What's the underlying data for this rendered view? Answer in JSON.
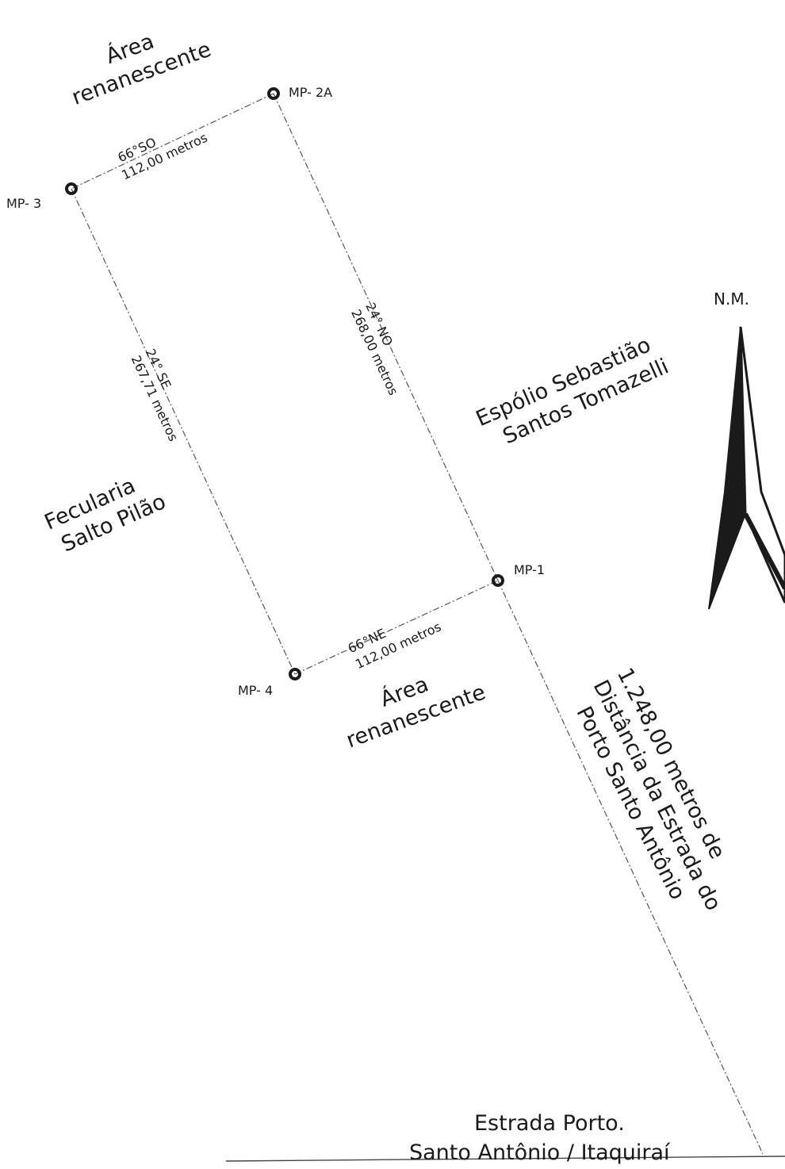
{
  "markers": {
    "mp_2a": "MP- 2A",
    "mp_3": "MP- 3",
    "mp_1": "MP-1",
    "mp_4": "MP- 4"
  },
  "segments": {
    "top": {
      "bearing": "66°SO",
      "length": "112,00 metros"
    },
    "left": {
      "bearing": "24° SE",
      "length": "267,71 metros"
    },
    "right": {
      "bearing": "24° NO",
      "length": "268,00 metros"
    },
    "bottom": {
      "bearing": "66°NE",
      "length": "112,00 metros"
    }
  },
  "areas": {
    "top_remaining": [
      "Área",
      "renanescente"
    ],
    "bottom_remaining": [
      "Área",
      "renanescente"
    ],
    "fecularia": [
      "Fecularia",
      "Salto Pilão"
    ],
    "espolio": [
      "Espólio Sebastião",
      "Santos Tomazelli"
    ]
  },
  "distance_note": [
    "1.248,00 metros de",
    "Distância da Estrada do",
    "Porto Santo Antônio"
  ],
  "road": [
    "Estrada Porto.",
    "Santo Antônio / Itaquiraí"
  ],
  "north_arrow": {
    "label": "N.M.",
    "icon": "north-arrow-icon"
  },
  "colors": {
    "ink": "#1a1a1a",
    "line": "#555555",
    "background": "#ffffff"
  }
}
